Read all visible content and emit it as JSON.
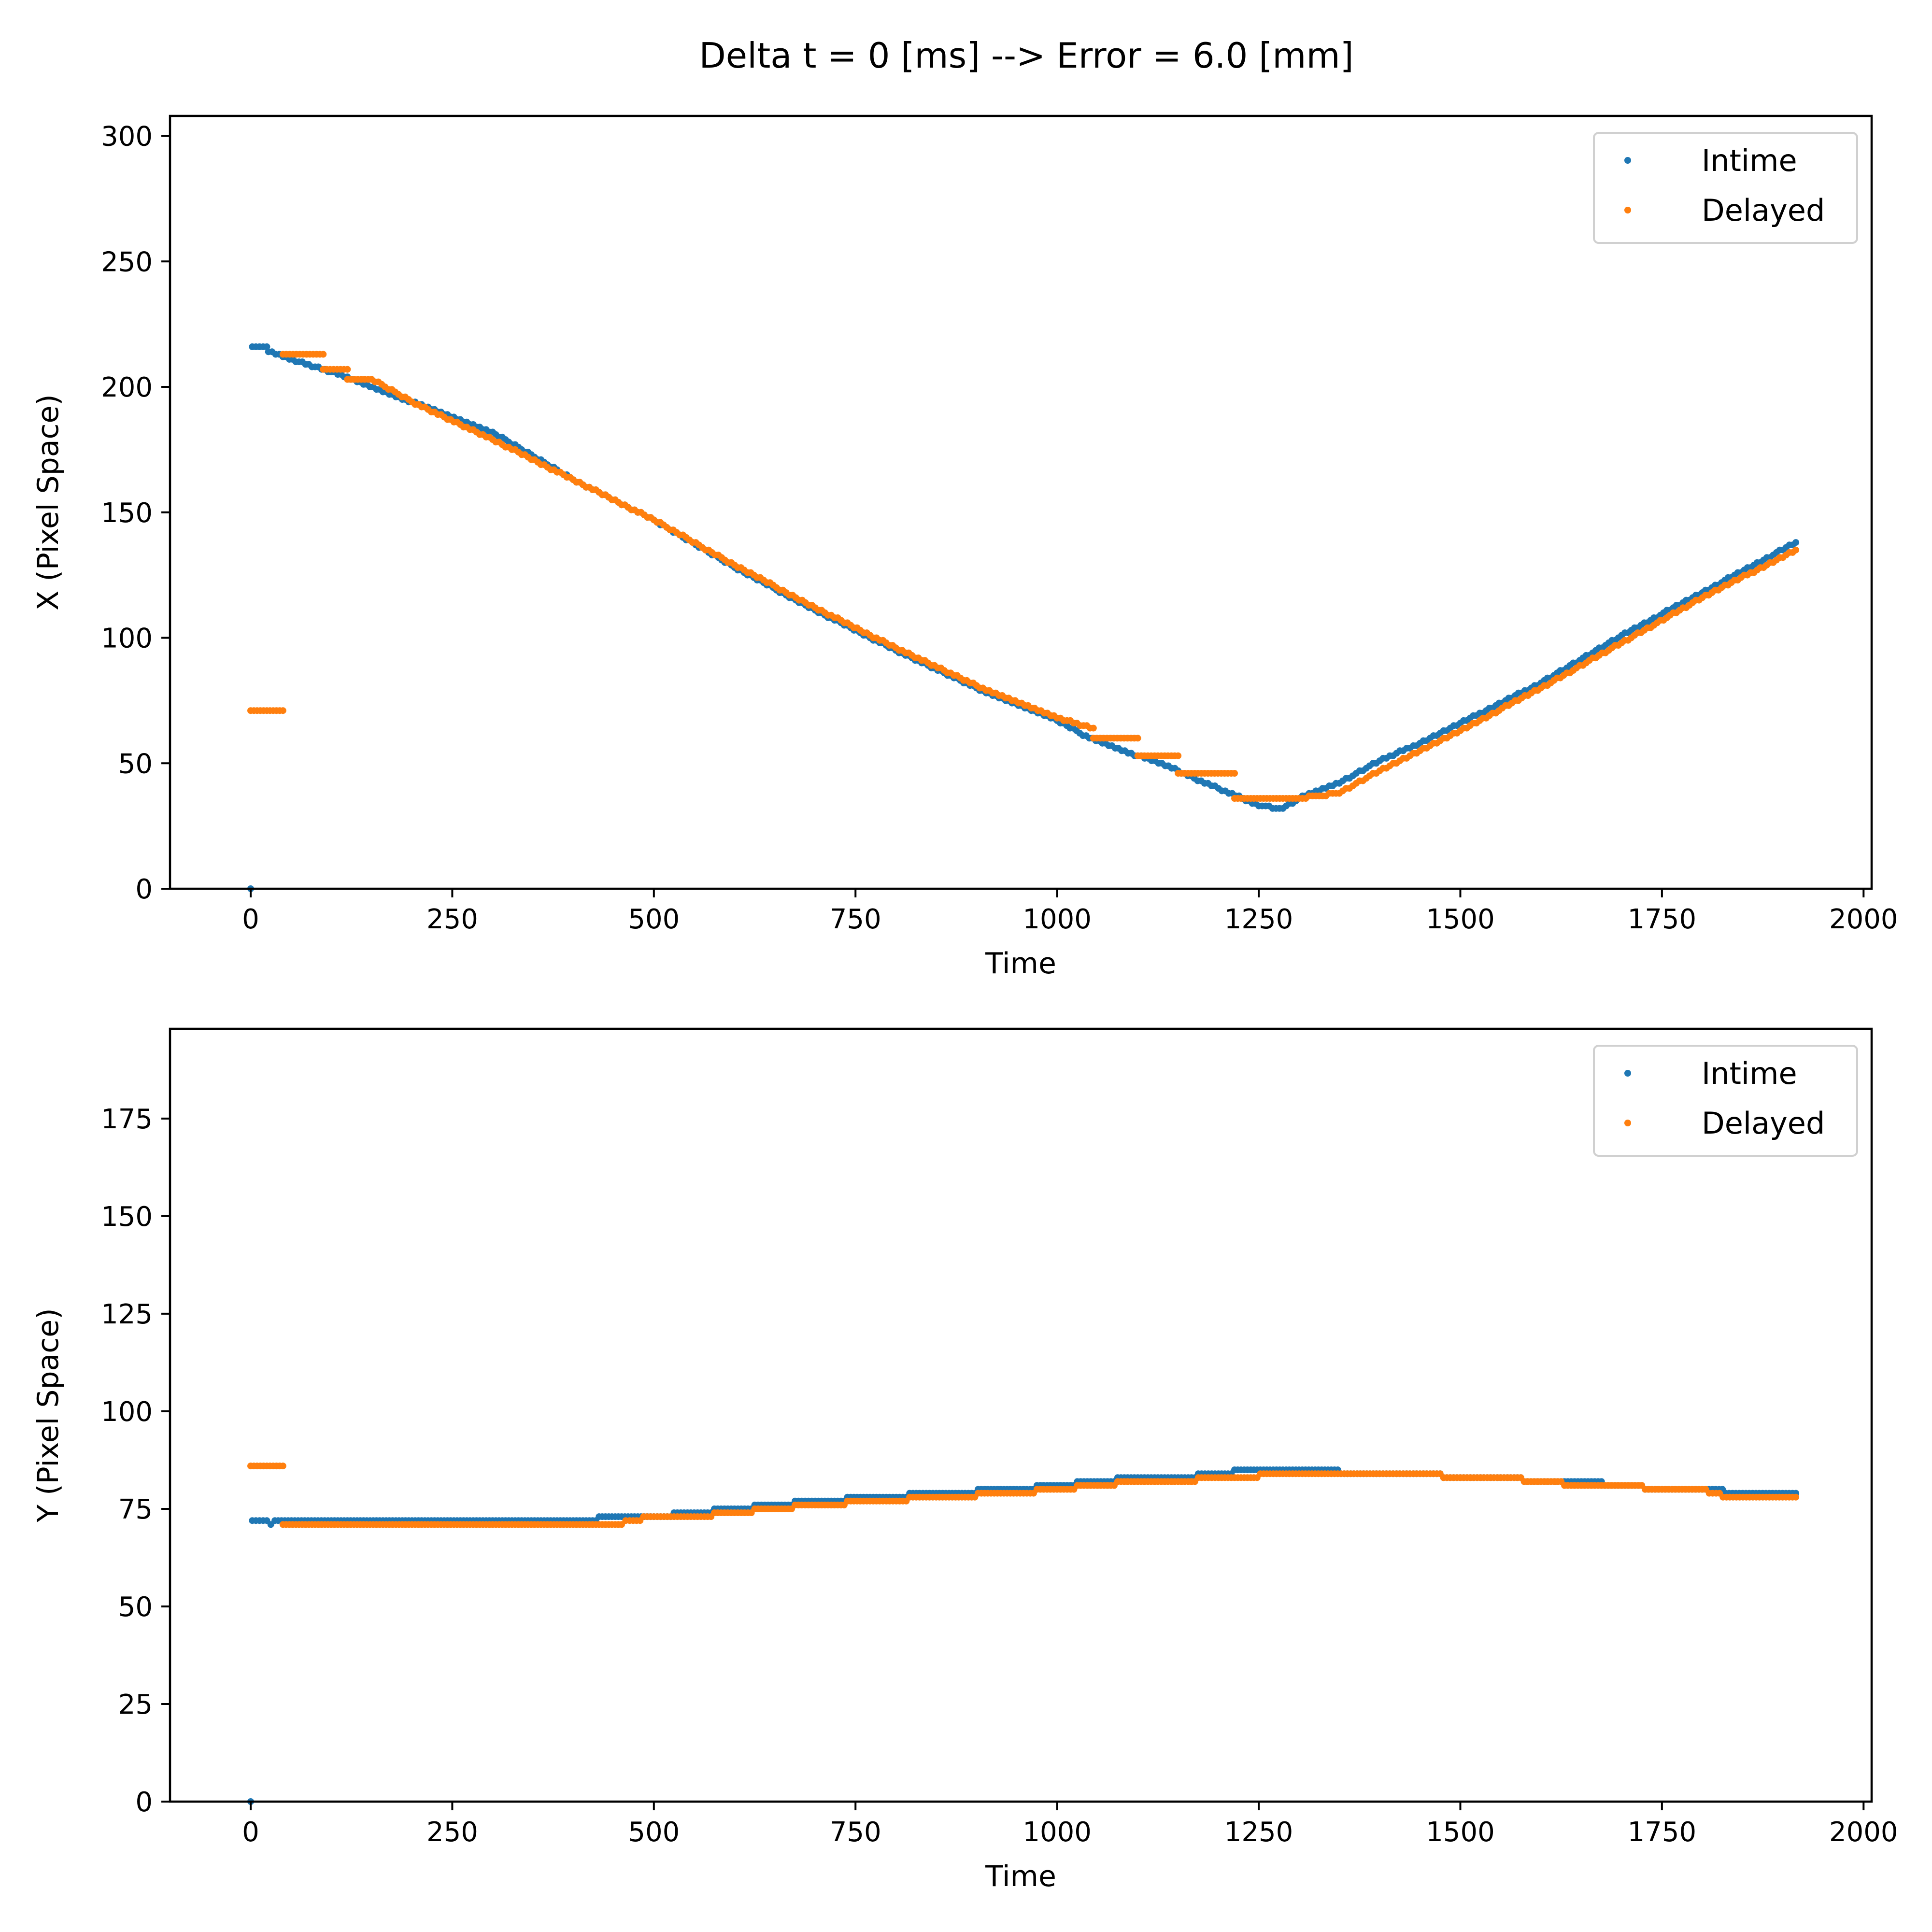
{
  "figure": {
    "suptitle": "Delta t = 0 [ms] --> Error = 6.0 [mm]"
  },
  "colors": {
    "intime": "#1f77b4",
    "delayed": "#ff7f0e"
  },
  "chart_data": [
    {
      "type": "scatter",
      "title": "",
      "xlabel": "Time",
      "ylabel": "X (Pixel Space)",
      "xlim": [
        -100,
        2010
      ],
      "ylim": [
        0,
        308
      ],
      "xticks": [
        0,
        250,
        500,
        750,
        1000,
        1250,
        1500,
        1750,
        2000
      ],
      "yticks": [
        0,
        50,
        100,
        150,
        200,
        250,
        300
      ],
      "legend": {
        "position": "top-right",
        "entries": [
          "Intime",
          "Delayed"
        ]
      },
      "grid": false,
      "series": [
        {
          "name": "Intime",
          "color": "#1f77b4",
          "points": [
            [
              0,
              0
            ],
            [
              2,
              216
            ],
            [
              20,
              216
            ],
            [
              22,
              214
            ],
            [
              40,
              212
            ],
            [
              100,
              206
            ],
            [
              200,
              194
            ],
            [
              300,
              182
            ],
            [
              400,
              163
            ],
            [
              500,
              147
            ],
            [
              600,
              128
            ],
            [
              700,
              111
            ],
            [
              800,
              95
            ],
            [
              900,
              80
            ],
            [
              1000,
              67
            ],
            [
              1040,
              60
            ],
            [
              1080,
              55
            ],
            [
              1100,
              53
            ],
            [
              1130,
              50
            ],
            [
              1150,
              47
            ],
            [
              1170,
              44
            ],
            [
              1200,
              40
            ],
            [
              1230,
              36
            ],
            [
              1250,
              33
            ],
            [
              1280,
              32
            ],
            [
              1300,
              36
            ],
            [
              1350,
              42
            ],
            [
              1400,
              51
            ],
            [
              1450,
              58
            ],
            [
              1500,
              66
            ],
            [
              1600,
              82
            ],
            [
              1700,
              101
            ],
            [
              1800,
              118
            ],
            [
              1916,
              138
            ]
          ]
        },
        {
          "name": "Delayed",
          "color": "#ff7f0e",
          "points": [
            [
              0,
              71
            ],
            [
              40,
              71
            ],
            [
              40,
              213
            ],
            [
              90,
              213
            ],
            [
              90,
              207
            ],
            [
              120,
              207
            ],
            [
              120,
              203
            ],
            [
              150,
              203
            ],
            [
              200,
              194
            ],
            [
              300,
              179
            ],
            [
              400,
              163
            ],
            [
              500,
              147
            ],
            [
              600,
              129
            ],
            [
              700,
              112
            ],
            [
              800,
              96
            ],
            [
              900,
              81
            ],
            [
              1000,
              68
            ],
            [
              1045,
              64
            ],
            [
              1045,
              60
            ],
            [
              1100,
              60
            ],
            [
              1100,
              53
            ],
            [
              1150,
              53
            ],
            [
              1150,
              46
            ],
            [
              1220,
              46
            ],
            [
              1220,
              36
            ],
            [
              1300,
              36
            ],
            [
              1350,
              38
            ],
            [
              1400,
              47
            ],
            [
              1450,
              55
            ],
            [
              1500,
              63
            ],
            [
              1600,
              80
            ],
            [
              1700,
              98
            ],
            [
              1800,
              116
            ],
            [
              1916,
              135
            ]
          ]
        }
      ]
    },
    {
      "type": "scatter",
      "title": "",
      "xlabel": "Time",
      "ylabel": "Y (Pixel Space)",
      "xlim": [
        -100,
        2010
      ],
      "ylim": [
        0,
        198
      ],
      "xticks": [
        0,
        250,
        500,
        750,
        1000,
        1250,
        1500,
        1750,
        2000
      ],
      "yticks": [
        0,
        25,
        50,
        75,
        100,
        125,
        150,
        175
      ],
      "legend": {
        "position": "top-right",
        "entries": [
          "Intime",
          "Delayed"
        ]
      },
      "grid": false,
      "series": [
        {
          "name": "Intime",
          "color": "#1f77b4",
          "points": [
            [
              0,
              0
            ],
            [
              2,
              72
            ],
            [
              20,
              72
            ],
            [
              25,
              71
            ],
            [
              30,
              72
            ],
            [
              100,
              72
            ],
            [
              200,
              72
            ],
            [
              300,
              72
            ],
            [
              400,
              72
            ],
            [
              460,
              73
            ],
            [
              500,
              73
            ],
            [
              550,
              74
            ],
            [
              600,
              75
            ],
            [
              650,
              76
            ],
            [
              700,
              77
            ],
            [
              780,
              78
            ],
            [
              850,
              79
            ],
            [
              950,
              80
            ],
            [
              1000,
              81
            ],
            [
              1050,
              82
            ],
            [
              1100,
              83
            ],
            [
              1150,
              83
            ],
            [
              1200,
              84
            ],
            [
              1240,
              85
            ],
            [
              1300,
              85
            ],
            [
              1400,
              84
            ],
            [
              1450,
              84
            ],
            [
              1500,
              83
            ],
            [
              1550,
              83
            ],
            [
              1600,
              82
            ],
            [
              1650,
              82
            ],
            [
              1700,
              81
            ],
            [
              1750,
              80
            ],
            [
              1800,
              80
            ],
            [
              1850,
              79
            ],
            [
              1916,
              79
            ]
          ]
        },
        {
          "name": "Delayed",
          "color": "#ff7f0e",
          "points": [
            [
              0,
              86
            ],
            [
              40,
              86
            ],
            [
              40,
              71
            ],
            [
              100,
              71
            ],
            [
              200,
              71
            ],
            [
              300,
              71
            ],
            [
              400,
              71
            ],
            [
              460,
              71
            ],
            [
              470,
              72
            ],
            [
              500,
              73
            ],
            [
              550,
              73
            ],
            [
              600,
              74
            ],
            [
              650,
              75
            ],
            [
              700,
              76
            ],
            [
              780,
              77
            ],
            [
              850,
              78
            ],
            [
              950,
              79
            ],
            [
              1000,
              80
            ],
            [
              1050,
              81
            ],
            [
              1100,
              82
            ],
            [
              1150,
              82
            ],
            [
              1200,
              83
            ],
            [
              1300,
              84
            ],
            [
              1400,
              84
            ],
            [
              1450,
              84
            ],
            [
              1500,
              83
            ],
            [
              1550,
              83
            ],
            [
              1600,
              82
            ],
            [
              1650,
              81
            ],
            [
              1700,
              81
            ],
            [
              1750,
              80
            ],
            [
              1800,
              80
            ],
            [
              1830,
              78
            ],
            [
              1916,
              78
            ]
          ]
        }
      ]
    }
  ]
}
